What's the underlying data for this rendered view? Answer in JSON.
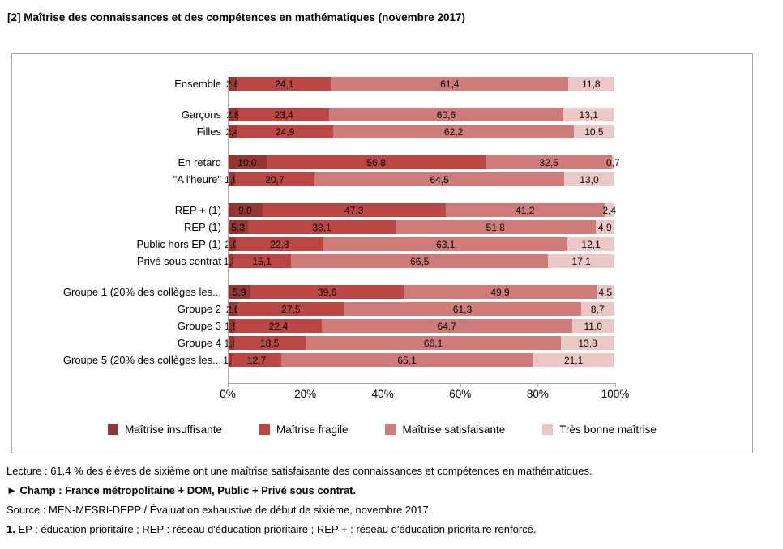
{
  "title": "[2] Maîtrise des connaissances et des compétences en mathématiques (novembre 2017)",
  "chart_data": {
    "type": "bar",
    "stacked": true,
    "orientation": "horizontal",
    "title": "Maîtrise des connaissances et des compétences en mathématiques (novembre 2017)",
    "xlim": [
      0,
      100
    ],
    "x_ticks": [
      "0%",
      "20%",
      "40%",
      "60%",
      "80%",
      "100%"
    ],
    "grid": false,
    "legend_position": "bottom",
    "categories": [
      "Ensemble",
      "Garçons",
      "Filles",
      "En retard",
      "\"A l'heure\"",
      "REP + (1)",
      "REP (1)",
      "Public hors EP (1)",
      "Privé sous contrat",
      "Groupe 1 (20% des collèges les...",
      "Groupe 2",
      "Groupe 3",
      "Groupe 4",
      "Groupe 5 (20% des collèges les...",
      ""
    ],
    "group_starts": [
      1,
      3,
      5,
      9
    ],
    "series": [
      {
        "name": "Maîtrise insuffisante",
        "color": "#963634",
        "values": [
          2.6,
          2.8,
          2.4,
          10.0,
          1.8,
          9.0,
          5.3,
          2.0,
          1.3,
          5.9,
          2.6,
          1.9,
          1.6,
          1.1
        ]
      },
      {
        "name": "Maîtrise fragile",
        "color": "#BA4743",
        "values": [
          24.1,
          23.4,
          24.9,
          56.8,
          20.7,
          47.3,
          38.1,
          22.8,
          15.1,
          39.6,
          27.5,
          22.4,
          18.5,
          12.7
        ]
      },
      {
        "name": "Maîtrise satisfaisante",
        "color": "#CF7B79",
        "values": [
          61.4,
          60.6,
          62.2,
          32.5,
          64.5,
          41.2,
          51.8,
          63.1,
          66.5,
          49.9,
          61.3,
          64.7,
          66.1,
          65.1
        ]
      },
      {
        "name": "Très bonne maîtrise",
        "color": "#EBC8C6",
        "values": [
          11.8,
          13.1,
          10.5,
          0.7,
          13.0,
          2.4,
          4.9,
          12.1,
          17.1,
          4.5,
          8.7,
          11.0,
          13.8,
          21.1
        ]
      }
    ]
  },
  "footer": {
    "lecture": "Lecture : 61,4 % des élèves de sixième ont une maîtrise satisfaisante des connaissances et compétences en mathématiques.",
    "champ": "► Champ : France métropolitaine + DOM, Public + Privé sous contrat.",
    "source": "Source : MEN-MESRI-DEPP / Évaluation exhaustive de début de sixième, novembre 2017.",
    "note1_prefix": "1.",
    "note1": " EP : éducation prioritaire ; REP : réseau d'éducation prioritaire ; REP + : réseau d'éducation prioritaire renforcé."
  }
}
